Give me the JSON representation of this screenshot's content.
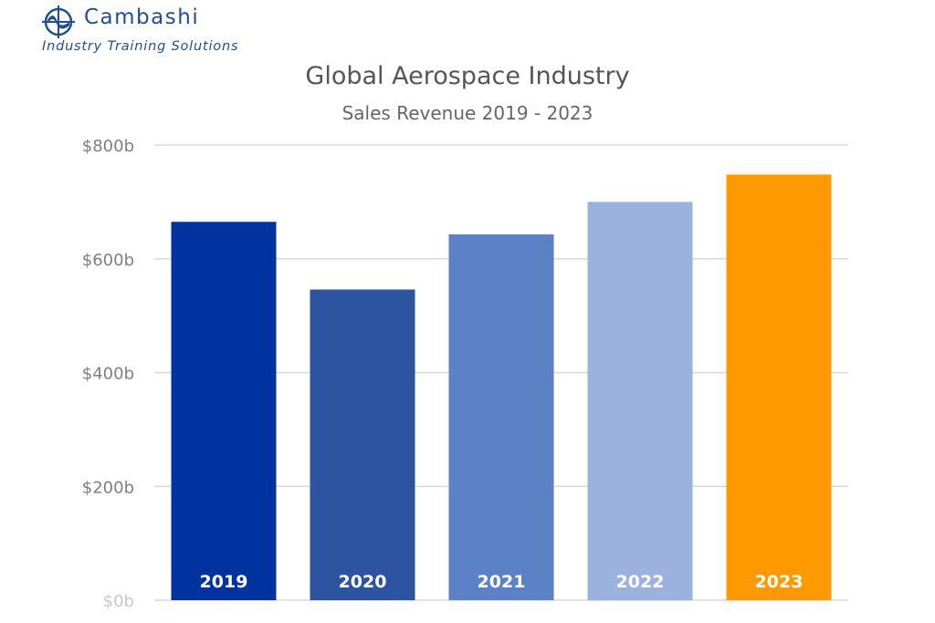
{
  "logo": {
    "brand": "Cambashi",
    "tagline": "Industry Training Solutions",
    "color": "#1f4e96"
  },
  "chart_data": {
    "type": "bar",
    "title": "Global Aerospace Industry",
    "subtitle": "Sales Revenue 2019 - 2023",
    "categories": [
      "2019",
      "2020",
      "2021",
      "2022",
      "2023"
    ],
    "values": [
      665,
      546,
      643,
      700,
      748
    ],
    "colors": [
      "#0033a0",
      "#2c54a0",
      "#5b81c6",
      "#9bb1de",
      "#ff9900"
    ],
    "ylim": [
      0,
      800
    ],
    "yticks": [
      0,
      200,
      400,
      600,
      800
    ],
    "ytick_labels": [
      "$0b",
      "$200b",
      "$400b",
      "$600b",
      "$800b"
    ],
    "category_labels_inside_bars": true,
    "grid": true,
    "xlabel": "",
    "ylabel": ""
  }
}
